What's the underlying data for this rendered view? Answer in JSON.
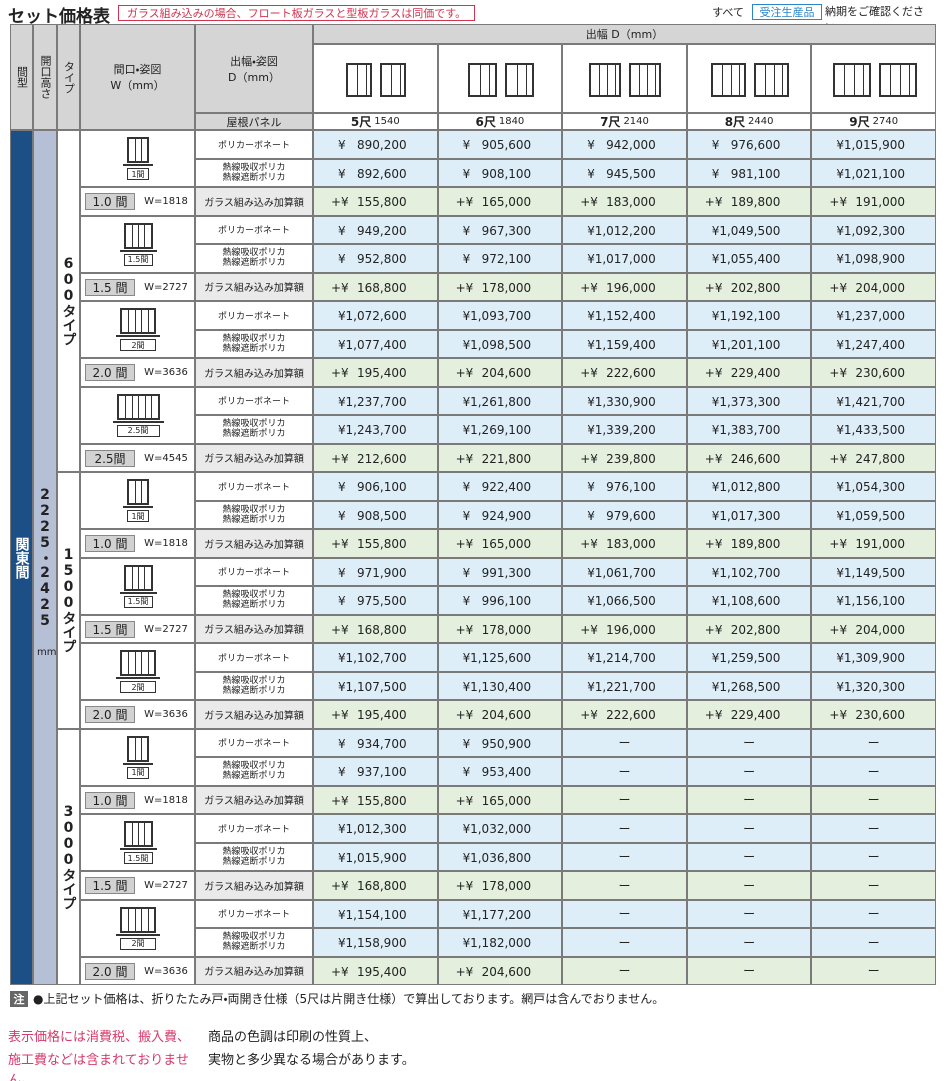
{
  "header": {
    "title": "セット価格表",
    "notice": "ガラス組み込みの場合、フロート板ガラスと型板ガラスは同価です。",
    "note_prefix": "すべて",
    "badge": "受注生産品",
    "note_suffix": "納期をご確認ください。"
  },
  "table": {
    "column_headers": {
      "layout": "間型",
      "height": "開口高さ",
      "type": "タイプ",
      "width": "間口・姿図",
      "width_unit": "W（mm）",
      "depth": "出幅・姿図",
      "depth_unit": "D（mm）",
      "panel": "屋根パネル",
      "depth_span": "出幅 D（mm）"
    },
    "sizes": [
      {
        "shaku": "5尺",
        "mm": "1540"
      },
      {
        "shaku": "6尺",
        "mm": "1840"
      },
      {
        "shaku": "7尺",
        "mm": "2140"
      },
      {
        "shaku": "8尺",
        "mm": "2440"
      },
      {
        "shaku": "9尺",
        "mm": "2740"
      }
    ],
    "layout": "関東間",
    "height": "2225・2425",
    "height_unit": "mm",
    "panel_types": {
      "polycarbonate": "ポリカーボネート",
      "heat": [
        "熱線吸収ポリカ",
        "熱線遮断ポリカ"
      ],
      "glass": "ガラス組み込み加算額"
    },
    "signs": {
      "price": "¥",
      "addition": "+¥"
    },
    "missing": "ー",
    "types": [
      {
        "name": "600タイプ",
        "groups": [
          {
            "width": "1.0 間",
            "w": "W=1818",
            "figure": "1間",
            "polycarbonate": [
              "890,200",
              "905,600",
              "942,000",
              "976,600",
              "1,015,900"
            ],
            "heat": [
              "892,600",
              "908,100",
              "945,500",
              "981,100",
              "1,021,100"
            ],
            "glass": [
              "155,800",
              "165,000",
              "183,000",
              "189,800",
              "191,000"
            ]
          },
          {
            "width": "1.5 間",
            "w": "W=2727",
            "figure": "1.5間",
            "polycarbonate": [
              "949,200",
              "967,300",
              "1,012,200",
              "1,049,500",
              "1,092,300"
            ],
            "heat": [
              "952,800",
              "972,100",
              "1,017,000",
              "1,055,400",
              "1,098,900"
            ],
            "glass": [
              "168,800",
              "178,000",
              "196,000",
              "202,800",
              "204,000"
            ]
          },
          {
            "width": "2.0 間",
            "w": "W=3636",
            "figure": "2間",
            "polycarbonate": [
              "1,072,600",
              "1,093,700",
              "1,152,400",
              "1,192,100",
              "1,237,000"
            ],
            "heat": [
              "1,077,400",
              "1,098,500",
              "1,159,400",
              "1,201,100",
              "1,247,400"
            ],
            "glass": [
              "195,400",
              "204,600",
              "222,600",
              "229,400",
              "230,600"
            ]
          },
          {
            "width": "2.5間",
            "w": "W=4545",
            "figure": "2.5間",
            "polycarbonate": [
              "1,237,700",
              "1,261,800",
              "1,330,900",
              "1,373,300",
              "1,421,700"
            ],
            "heat": [
              "1,243,700",
              "1,269,100",
              "1,339,200",
              "1,383,700",
              "1,433,500"
            ],
            "glass": [
              "212,600",
              "221,800",
              "239,800",
              "246,600",
              "247,800"
            ]
          }
        ]
      },
      {
        "name": "1500タイプ",
        "groups": [
          {
            "width": "1.0 間",
            "w": "W=1818",
            "figure": "1間",
            "polycarbonate": [
              "906,100",
              "922,400",
              "976,100",
              "1,012,800",
              "1,054,300"
            ],
            "heat": [
              "908,500",
              "924,900",
              "979,600",
              "1,017,300",
              "1,059,500"
            ],
            "glass": [
              "155,800",
              "165,000",
              "183,000",
              "189,800",
              "191,000"
            ]
          },
          {
            "width": "1.5 間",
            "w": "W=2727",
            "figure": "1.5間",
            "polycarbonate": [
              "971,900",
              "991,300",
              "1,061,700",
              "1,102,700",
              "1,149,500"
            ],
            "heat": [
              "975,500",
              "996,100",
              "1,066,500",
              "1,108,600",
              "1,156,100"
            ],
            "glass": [
              "168,800",
              "178,000",
              "196,000",
              "202,800",
              "204,000"
            ]
          },
          {
            "width": "2.0 間",
            "w": "W=3636",
            "figure": "2間",
            "polycarbonate": [
              "1,102,700",
              "1,125,600",
              "1,214,700",
              "1,259,500",
              "1,309,900"
            ],
            "heat": [
              "1,107,500",
              "1,130,400",
              "1,221,700",
              "1,268,500",
              "1,320,300"
            ],
            "glass": [
              "195,400",
              "204,600",
              "222,600",
              "229,400",
              "230,600"
            ]
          }
        ]
      },
      {
        "name": "3000タイプ",
        "groups": [
          {
            "width": "1.0 間",
            "w": "W=1818",
            "figure": "1間",
            "polycarbonate": [
              "934,700",
              "950,900",
              null,
              null,
              null
            ],
            "heat": [
              "937,100",
              "953,400",
              null,
              null,
              null
            ],
            "glass": [
              "155,800",
              "165,000",
              null,
              null,
              null
            ]
          },
          {
            "width": "1.5 間",
            "w": "W=2727",
            "figure": "1.5間",
            "polycarbonate": [
              "1,012,300",
              "1,032,000",
              null,
              null,
              null
            ],
            "heat": [
              "1,015,900",
              "1,036,800",
              null,
              null,
              null
            ],
            "glass": [
              "168,800",
              "178,000",
              null,
              null,
              null
            ]
          },
          {
            "width": "2.0 間",
            "w": "W=3636",
            "figure": "2間",
            "polycarbonate": [
              "1,154,100",
              "1,177,200",
              null,
              null,
              null
            ],
            "heat": [
              "1,158,900",
              "1,182,000",
              null,
              null,
              null
            ],
            "glass": [
              "195,400",
              "204,600",
              null,
              null,
              null
            ]
          }
        ]
      }
    ]
  },
  "footer": {
    "note_mark": "注",
    "note": "●上記セット価格は、折りたたみ戸・両開き仕様（5尺は片開き仕様）で算出しております。網戸は含んでおりません。",
    "disclaimer": [
      "表示価格には消費税、搬入費、",
      "施工費などは含まれておりません。"
    ],
    "color_note": [
      "商品の色調は印刷の性質上、",
      "実物と多少異なる場合があります。"
    ]
  }
}
